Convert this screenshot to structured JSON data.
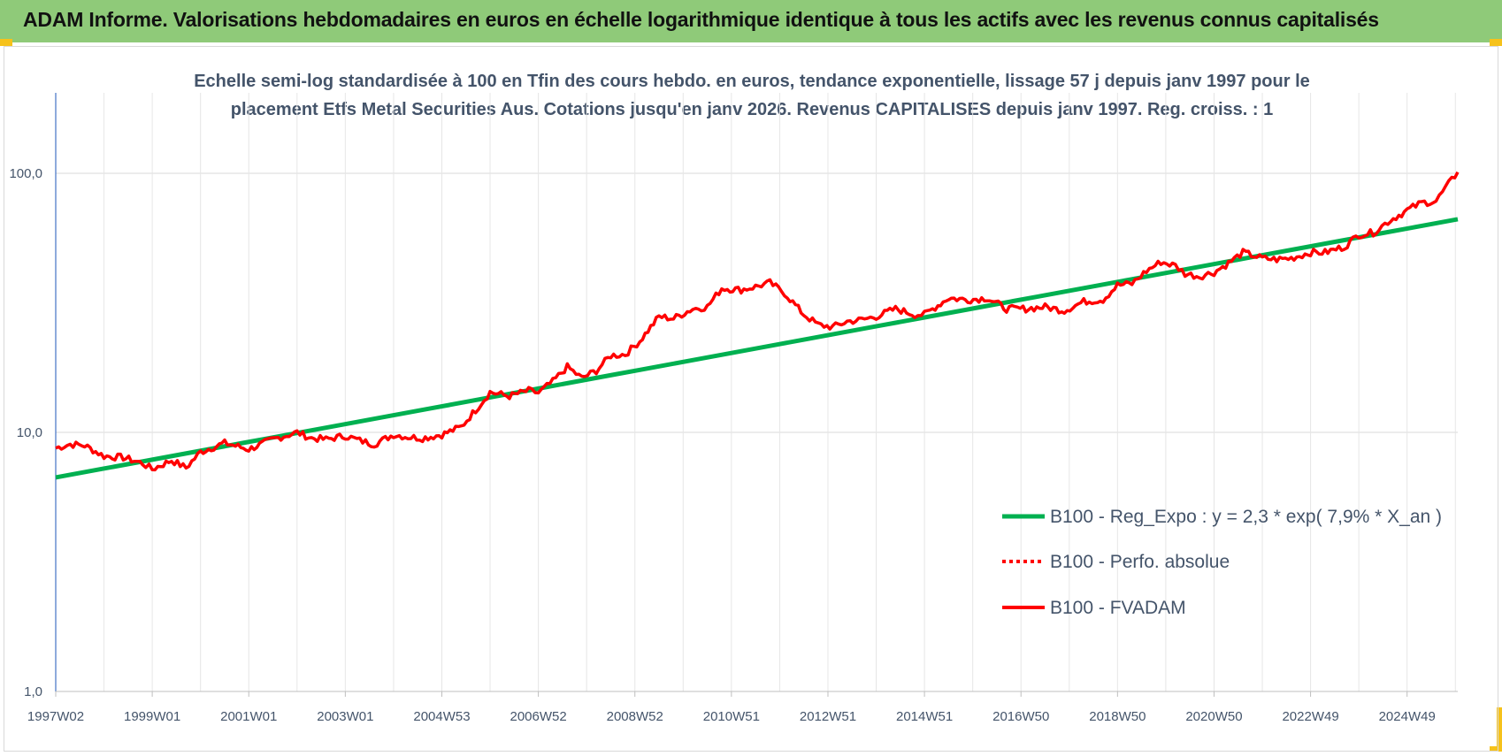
{
  "header": {
    "title": "ADAM Informe. Valorisations hebdomadaires en euros en échelle logarithmique identique à tous les actifs avec les revenus connus capitalisés"
  },
  "chart_data": {
    "type": "line",
    "title_lines": [
      "Echelle semi-log standardisée à 100 en Tfin des cours hebdo. en euros, tendance exponentielle, lissage 57 j depuis janv 1997 pour le",
      "placement Etfs Metal Securities Aus. Cotations jusqu'en janv 2026. Revenus CAPITALISES depuis janv 1997. Reg. croiss. : 1"
    ],
    "y_scale": "log",
    "ylim": [
      1,
      200
    ],
    "y_ticks": [
      1,
      10,
      100
    ],
    "y_tick_labels": [
      "1,0",
      "10,0",
      "100,0"
    ],
    "xlim": [
      1997.0,
      2026.05
    ],
    "x_ticks": [
      1997.0,
      1999.0,
      2001.0,
      2003.0,
      2005.0,
      2007.0,
      2009.0,
      2011.0,
      2013.0,
      2015.0,
      2017.0,
      2019.0,
      2021.0,
      2023.0,
      2025.0
    ],
    "x_tick_labels": [
      "1997W02",
      "1999W01",
      "2001W01",
      "2003W01",
      "2004W53",
      "2006W52",
      "2008W52",
      "2010W51",
      "2012W51",
      "2014W51",
      "2016W50",
      "2018W50",
      "2020W50",
      "2022W49",
      "2024W49"
    ],
    "grid": "vertical and horizontal",
    "legend_position": "right, lower-middle",
    "series": [
      {
        "name": "B100 - Reg_Expo : y = 2,3 * exp( 7,9% *  X_an )",
        "color": "#00b050",
        "style": "solid-thick",
        "x": [
          1997.0,
          2026.05
        ],
        "y": [
          6.7,
          66.5
        ]
      },
      {
        "name": "B100 - Perfo. absolue",
        "color": "#ff0000",
        "style": "dotted",
        "x": [],
        "y": []
      },
      {
        "name": "B100 - FVADAM",
        "color": "#ff0000",
        "style": "solid",
        "x": [
          1997.0,
          1997.3,
          1997.6,
          1998.0,
          1998.4,
          1998.8,
          1999.0,
          1999.4,
          1999.7,
          2000.0,
          2000.5,
          2001.0,
          2001.5,
          2002.0,
          2002.3,
          2002.6,
          2003.0,
          2003.3,
          2003.6,
          2004.0,
          2004.3,
          2004.6,
          2005.0,
          2005.4,
          2005.7,
          2006.0,
          2006.4,
          2006.8,
          2007.0,
          2007.3,
          2007.6,
          2007.9,
          2008.2,
          2008.5,
          2008.8,
          2009.1,
          2009.5,
          2009.8,
          2010.2,
          2010.5,
          2010.8,
          2011.2,
          2011.5,
          2011.8,
          2012.1,
          2012.5,
          2012.8,
          2013.1,
          2013.4,
          2013.7,
          2014.0,
          2014.4,
          2014.8,
          2015.0,
          2015.5,
          2015.9,
          2016.3,
          2016.7,
          2017.1,
          2017.5,
          2017.9,
          2018.3,
          2018.7,
          2019.0,
          2019.3,
          2019.6,
          2019.9,
          2020.2,
          2020.4,
          2020.7,
          2021.0,
          2021.3,
          2021.6,
          2022.0,
          2022.3,
          2022.6,
          2023.0,
          2023.3,
          2023.7,
          2024.0,
          2024.3,
          2024.6,
          2025.0,
          2025.3,
          2025.6,
          2025.8,
          2026.05
        ],
        "y": [
          8.7,
          9.0,
          8.9,
          8.1,
          8.0,
          7.6,
          7.2,
          7.8,
          7.3,
          8.4,
          9.1,
          8.6,
          9.4,
          10.0,
          9.5,
          9.4,
          9.7,
          9.3,
          9.0,
          9.8,
          9.6,
          9.5,
          9.8,
          10.5,
          12.2,
          14.3,
          13.8,
          14.5,
          14.2,
          15.7,
          17.9,
          16.2,
          17.3,
          19.8,
          20.0,
          22.5,
          28.0,
          27.5,
          30.0,
          30.5,
          36.0,
          35.5,
          36.5,
          37.8,
          34.5,
          28.5,
          26.0,
          25.5,
          26.8,
          27.2,
          28.0,
          30.0,
          28.5,
          28.5,
          33.0,
          32.5,
          33.0,
          30.0,
          30.0,
          30.5,
          29.5,
          32.0,
          32.5,
          37.0,
          37.5,
          42.0,
          45.5,
          44.0,
          41.0,
          40.0,
          41.5,
          45.0,
          49.5,
          47.0,
          46.5,
          47.0,
          49.5,
          49.5,
          52.0,
          58.0,
          59.0,
          65.0,
          72.0,
          77.0,
          78.0,
          88.0,
          101.0
        ]
      }
    ]
  }
}
